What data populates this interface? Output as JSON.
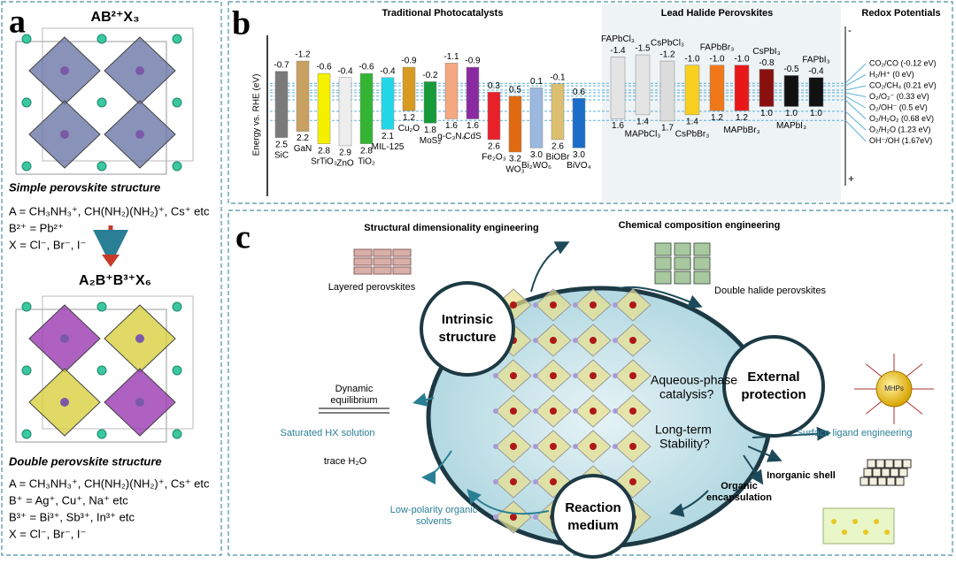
{
  "panel_a": {
    "label": "a",
    "formula_1": "AB²⁺X₃",
    "caption_1": "Simple perovskite structure",
    "composition_1": [
      "A = CH₃NH₃⁺, CH(NH₂)(NH₂)⁺, Cs⁺ etc",
      "B²⁺ = Pb²⁺",
      "X = Cl⁻, Br⁻, I⁻"
    ],
    "formula_2": "A₂B⁺B³⁺X₆",
    "caption_2": "Double perovskite structure",
    "composition_2": [
      "A = CH₃NH₃⁺, CH(NH₂)(NH₂)⁺, Cs⁺ etc",
      "B⁺ = Ag⁺, Cu⁺, Na⁺ etc",
      "B³⁺ = Bi³⁺, Sb³⁺, In³⁺ etc",
      "X = Cl⁻, Br⁻, I⁻"
    ]
  },
  "panel_b": {
    "label": "b",
    "axis_label": "Energy vs. RHE (eV)",
    "axis_top": "-",
    "axis_bottom": "+",
    "groups": [
      {
        "title": "Traditional Photocatalysts",
        "materials": [
          {
            "name": "SiC",
            "cb": -0.7,
            "vb": 2.5,
            "cb_label": "-0.7",
            "vb_label": "2.5",
            "color": "#7a7a7a"
          },
          {
            "name": "GaN",
            "cb": -1.2,
            "vb": 2.2,
            "cb_label": "-1.2",
            "vb_label": "2.2",
            "color": "#c8a060"
          },
          {
            "name": "SrTiO₃",
            "cb": -0.6,
            "vb": 2.8,
            "cb_label": "-0.6",
            "vb_label": "2.8",
            "color": "#f5f000"
          },
          {
            "name": "ZnO",
            "cb": -0.4,
            "vb": 2.9,
            "cb_label": "-0.4",
            "vb_label": "2.9",
            "color": "#eeeeee"
          },
          {
            "name": "TiO₂",
            "cb": -0.6,
            "vb": 2.8,
            "cb_label": "-0.6",
            "vb_label": "2.8",
            "color": "#33b533"
          },
          {
            "name": "MIL-125",
            "cb": -0.4,
            "vb": 2.1,
            "cb_label": "-0.4",
            "vb_label": "2.1",
            "color": "#22d8e8"
          },
          {
            "name": "Cu₂O",
            "cb": -0.9,
            "vb": 1.2,
            "cb_label": "-0.9",
            "vb_label": "1.2",
            "color": "#d89a20"
          },
          {
            "name": "MoS₂",
            "cb": -0.2,
            "vb": 1.8,
            "cb_label": "-0.2",
            "vb_label": "1.8",
            "color": "#169a3a"
          },
          {
            "name": "g-C₃N₄",
            "cb": -1.1,
            "vb": 1.6,
            "cb_label": "-1.1",
            "vb_label": "1.6",
            "color": "#f4a880"
          },
          {
            "name": "CdS",
            "cb": -0.9,
            "vb": 1.6,
            "cb_label": "-0.9",
            "vb_label": "1.6",
            "color": "#8a2aa0"
          },
          {
            "name": "Fe₂O₃",
            "cb": 0.3,
            "vb": 2.6,
            "cb_label": "0.3",
            "vb_label": "2.6",
            "color": "#e8202a"
          },
          {
            "name": "WO₃",
            "cb": 0.5,
            "vb": 3.2,
            "cb_label": "0.5",
            "vb_label": "3.2",
            "color": "#e06a10"
          },
          {
            "name": "Bi₂WO₆",
            "cb": 0.1,
            "vb": 3.0,
            "cb_label": "0.1",
            "vb_label": "3.0",
            "color": "#9ab8e0"
          },
          {
            "name": "BiOBr",
            "cb": -0.1,
            "vb": 2.6,
            "cb_label": "-0.1",
            "vb_label": "2.6",
            "color": "#dcc070"
          },
          {
            "name": "BiVO₄",
            "cb": 0.6,
            "vb": 3.0,
            "cb_label": "0.6",
            "vb_label": "3.0",
            "color": "#1a6ec8"
          }
        ]
      },
      {
        "title": "Lead Halide Perovskites",
        "materials": [
          {
            "name": "FAPbCl₃",
            "cb": -1.4,
            "vb": 1.6,
            "cb_label": "-1.4",
            "vb_label": "1.6",
            "color": "#e4e4e4"
          },
          {
            "name": "MAPbCl₃",
            "cb": -1.5,
            "vb": 1.4,
            "cb_label": "-1.5",
            "vb_label": "1.4",
            "color": "#e4e4e4"
          },
          {
            "name": "CsPbCl₃",
            "cb": -1.2,
            "vb": 1.7,
            "cb_label": "-1.2",
            "vb_label": "1.7",
            "color": "#dcdcdc"
          },
          {
            "name": "CsPbBr₃",
            "cb": -1.0,
            "vb": 1.4,
            "cb_label": "-1.0",
            "vb_label": "1.4",
            "color": "#f8d020"
          },
          {
            "name": "FAPbBr₃",
            "cb": -1.0,
            "vb": 1.2,
            "cb_label": "-1.0",
            "vb_label": "1.2",
            "color": "#f07818"
          },
          {
            "name": "MAPbBr₃",
            "cb": -1.0,
            "vb": 1.2,
            "cb_label": "-1.0",
            "vb_label": "1.2",
            "color": "#e81818"
          },
          {
            "name": "CsPbI₃",
            "cb": -0.8,
            "vb": 1.0,
            "cb_label": "-0.8",
            "vb_label": "1.0",
            "color": "#8a1010"
          },
          {
            "name": "MAPbI₃",
            "cb": -0.5,
            "vb": 1.0,
            "cb_label": "-0.5",
            "vb_label": "1.0",
            "color": "#111111"
          },
          {
            "name": "FAPbI₃",
            "cb": -0.4,
            "vb": 1.0,
            "cb_label": "-0.4",
            "vb_label": "1.0",
            "color": "#111111"
          }
        ]
      }
    ],
    "redox_title": "Redox Potentials",
    "redox": [
      {
        "label": "CO₂/CO (-0.12 eV)",
        "value": -0.12
      },
      {
        "label": "H₂/H⁺ (0 eV)",
        "value": 0
      },
      {
        "label": "CO₂/CH₄ (0.21 eV)",
        "value": 0.21
      },
      {
        "label": "O₂/O₂⁻ (0.33 eV)",
        "value": 0.33
      },
      {
        "label": "O₂/OH⁻ (0.5 eV)",
        "value": 0.5
      },
      {
        "label": "O₂/H₂O₂ (0.68 eV)",
        "value": 0.68
      },
      {
        "label": "O₂/H₂O (1.23 eV)",
        "value": 1.23
      },
      {
        "label": "OH⁻/OH (1.67eV)",
        "value": 1.67
      }
    ]
  },
  "panel_c": {
    "label": "c",
    "structural": "Structural dimensionality engineering",
    "chemical": "Chemical composition engineering",
    "layered": "Layered perovskites",
    "double_halide": "Double halide perovskites",
    "topics": [
      [
        "Intrinsic",
        "structure"
      ],
      [
        "External",
        "protection"
      ],
      [
        "Reaction",
        "medium"
      ]
    ],
    "question_1": [
      "Aqueous-phase",
      "catalysis?"
    ],
    "question_2": [
      "Long-term",
      "Stability?"
    ],
    "equilibrium": [
      "Dynamic",
      "equilibrium"
    ],
    "hx": "Saturated HX solution",
    "trace": "trace H₂O",
    "low_polarity": [
      "Low-polarity organic",
      "solvents"
    ],
    "ligand": "Surface ligand engineering",
    "shell": "Inorganic shell",
    "organic": [
      "Organic",
      "encapsulation"
    ],
    "mhps": "MHPs"
  }
}
